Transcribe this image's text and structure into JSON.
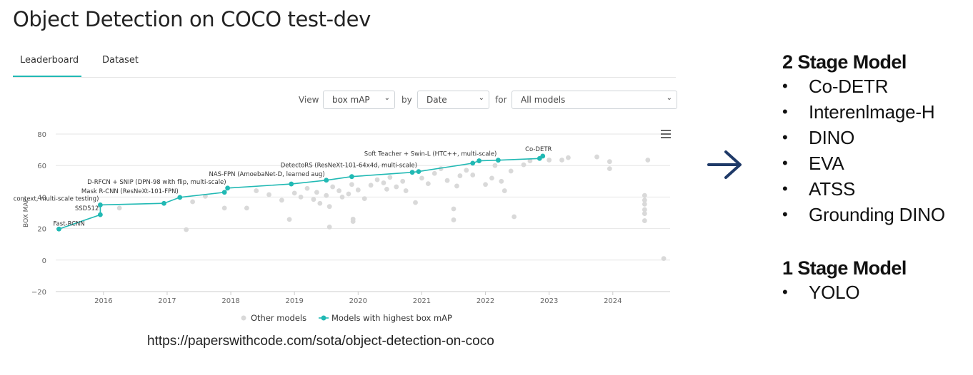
{
  "page": {
    "title": "Object Detection on COCO test-dev",
    "source_url": "https://paperswithcode.com/sota/object-detection-on-coco"
  },
  "tabs": [
    {
      "label": "Leaderboard",
      "active": true
    },
    {
      "label": "Dataset",
      "active": false
    }
  ],
  "filters": {
    "view_label": "View",
    "view_value": "box mAP",
    "by_label": "by",
    "by_value": "Date",
    "for_label": "for",
    "for_value": "All models"
  },
  "colors": {
    "accent": "#21b9b4",
    "other_points": "#d9d9d9",
    "arrow": "#1f3a68"
  },
  "icons": {
    "menu": "hamburger-menu-icon",
    "arrow": "right-arrow-icon",
    "bullet": "bullet-icon"
  },
  "chart_data": {
    "type": "scatter",
    "title": "",
    "xlabel": "",
    "ylabel": "BOX MAP",
    "xlim": [
      2015.25,
      2024.9
    ],
    "ylim": [
      -20,
      80
    ],
    "x_ticks": [
      "2016",
      "2017",
      "2018",
      "2019",
      "2020",
      "2021",
      "2022",
      "2023",
      "2024"
    ],
    "y_ticks": [
      "80",
      "60",
      "40",
      "20",
      "0",
      "−20"
    ],
    "grid": true,
    "legend": {
      "position": "bottom-center",
      "entries": [
        "Other models",
        "Models with highest box mAP"
      ]
    },
    "series": [
      {
        "name": "Models with highest box mAP",
        "points": [
          {
            "x": 2015.3,
            "y": 19.7,
            "label": "Fast-RCNN"
          },
          {
            "x": 2015.95,
            "y": 28.8,
            "label": "SSD512"
          },
          {
            "x": 2015.95,
            "y": 35.0,
            "label": "Faster R-CNN (box refinement, context, multi-scale testing)"
          },
          {
            "x": 2016.95,
            "y": 36.0,
            "label": ""
          },
          {
            "x": 2017.2,
            "y": 39.8,
            "label": "Mask R-CNN (ResNeXt-101-FPN)"
          },
          {
            "x": 2017.9,
            "y": 43.0,
            "label": ""
          },
          {
            "x": 2017.95,
            "y": 45.7,
            "label": "D-RFCN + SNIP (DPN-98 with flip, multi-scale)"
          },
          {
            "x": 2018.95,
            "y": 48.3,
            "label": ""
          },
          {
            "x": 2019.5,
            "y": 50.7,
            "label": "NAS-FPN (AmoebaNet-D, learned aug)"
          },
          {
            "x": 2019.9,
            "y": 53.0,
            "label": ""
          },
          {
            "x": 2020.85,
            "y": 55.7,
            "label": ""
          },
          {
            "x": 2020.95,
            "y": 56.2,
            "label": "DetectoRS (ResNeXt-101-64x4d, multi-scale)"
          },
          {
            "x": 2021.8,
            "y": 61.5,
            "label": ""
          },
          {
            "x": 2021.9,
            "y": 63.0,
            "label": ""
          },
          {
            "x": 2022.2,
            "y": 63.4,
            "label": "Soft Teacher + Swin-L (HTC++, multi-scale)"
          },
          {
            "x": 2022.85,
            "y": 64.5,
            "label": ""
          },
          {
            "x": 2022.9,
            "y": 66.0,
            "label": "Co-DETR"
          }
        ]
      },
      {
        "name": "Other models",
        "points": [
          {
            "x": 2016.25,
            "y": 33.0
          },
          {
            "x": 2017.3,
            "y": 19.3
          },
          {
            "x": 2017.4,
            "y": 37.0
          },
          {
            "x": 2017.6,
            "y": 40.5
          },
          {
            "x": 2017.9,
            "y": 33.0
          },
          {
            "x": 2018.25,
            "y": 33.0
          },
          {
            "x": 2018.4,
            "y": 44.0
          },
          {
            "x": 2018.6,
            "y": 41.5
          },
          {
            "x": 2018.8,
            "y": 38.0
          },
          {
            "x": 2018.92,
            "y": 25.8
          },
          {
            "x": 2019.0,
            "y": 42.5
          },
          {
            "x": 2019.1,
            "y": 40.0
          },
          {
            "x": 2019.2,
            "y": 45.5
          },
          {
            "x": 2019.3,
            "y": 38.5
          },
          {
            "x": 2019.35,
            "y": 43.0
          },
          {
            "x": 2019.4,
            "y": 36.0
          },
          {
            "x": 2019.5,
            "y": 41.0
          },
          {
            "x": 2019.55,
            "y": 34.0
          },
          {
            "x": 2019.55,
            "y": 21.0
          },
          {
            "x": 2019.6,
            "y": 46.5
          },
          {
            "x": 2019.7,
            "y": 44.0
          },
          {
            "x": 2019.75,
            "y": 40.0
          },
          {
            "x": 2019.85,
            "y": 42.0
          },
          {
            "x": 2019.9,
            "y": 48.0
          },
          {
            "x": 2019.92,
            "y": 26.0
          },
          {
            "x": 2019.92,
            "y": 24.5
          },
          {
            "x": 2020.0,
            "y": 44.5
          },
          {
            "x": 2020.1,
            "y": 39.0
          },
          {
            "x": 2020.2,
            "y": 47.5
          },
          {
            "x": 2020.3,
            "y": 51.0
          },
          {
            "x": 2020.4,
            "y": 49.0
          },
          {
            "x": 2020.45,
            "y": 45.0
          },
          {
            "x": 2020.5,
            "y": 52.5
          },
          {
            "x": 2020.6,
            "y": 46.5
          },
          {
            "x": 2020.7,
            "y": 50.0
          },
          {
            "x": 2020.75,
            "y": 44.0
          },
          {
            "x": 2020.9,
            "y": 36.5
          },
          {
            "x": 2021.0,
            "y": 52.0
          },
          {
            "x": 2021.1,
            "y": 48.5
          },
          {
            "x": 2021.2,
            "y": 55.0
          },
          {
            "x": 2021.3,
            "y": 58.0
          },
          {
            "x": 2021.4,
            "y": 50.5
          },
          {
            "x": 2021.5,
            "y": 25.5
          },
          {
            "x": 2021.5,
            "y": 32.5
          },
          {
            "x": 2021.55,
            "y": 47.0
          },
          {
            "x": 2021.6,
            "y": 53.5
          },
          {
            "x": 2021.7,
            "y": 57.0
          },
          {
            "x": 2021.8,
            "y": 54.0
          },
          {
            "x": 2022.0,
            "y": 48.0
          },
          {
            "x": 2022.1,
            "y": 52.0
          },
          {
            "x": 2022.15,
            "y": 60.0
          },
          {
            "x": 2022.25,
            "y": 50.0
          },
          {
            "x": 2022.3,
            "y": 44.0
          },
          {
            "x": 2022.4,
            "y": 56.5
          },
          {
            "x": 2022.45,
            "y": 27.5
          },
          {
            "x": 2022.6,
            "y": 60.5
          },
          {
            "x": 2022.7,
            "y": 63.0
          },
          {
            "x": 2023.0,
            "y": 63.5
          },
          {
            "x": 2023.2,
            "y": 63.5
          },
          {
            "x": 2023.3,
            "y": 65.0
          },
          {
            "x": 2023.75,
            "y": 65.5
          },
          {
            "x": 2023.95,
            "y": 62.5
          },
          {
            "x": 2023.95,
            "y": 58.0
          },
          {
            "x": 2024.5,
            "y": 41.0
          },
          {
            "x": 2024.5,
            "y": 38.0
          },
          {
            "x": 2024.5,
            "y": 35.5
          },
          {
            "x": 2024.5,
            "y": 32.0
          },
          {
            "x": 2024.5,
            "y": 29.5
          },
          {
            "x": 2024.5,
            "y": 25.0
          },
          {
            "x": 2024.55,
            "y": 63.5
          },
          {
            "x": 2024.8,
            "y": 1.0
          }
        ]
      }
    ]
  },
  "side_panel": {
    "two_stage": {
      "heading": "2 Stage Model",
      "items": [
        "Co-DETR",
        "Interenlmage-H",
        "DINO",
        "EVA",
        "ATSS",
        "Grounding DINO"
      ]
    },
    "one_stage": {
      "heading": "1 Stage Model",
      "items": [
        "YOLO"
      ]
    }
  }
}
